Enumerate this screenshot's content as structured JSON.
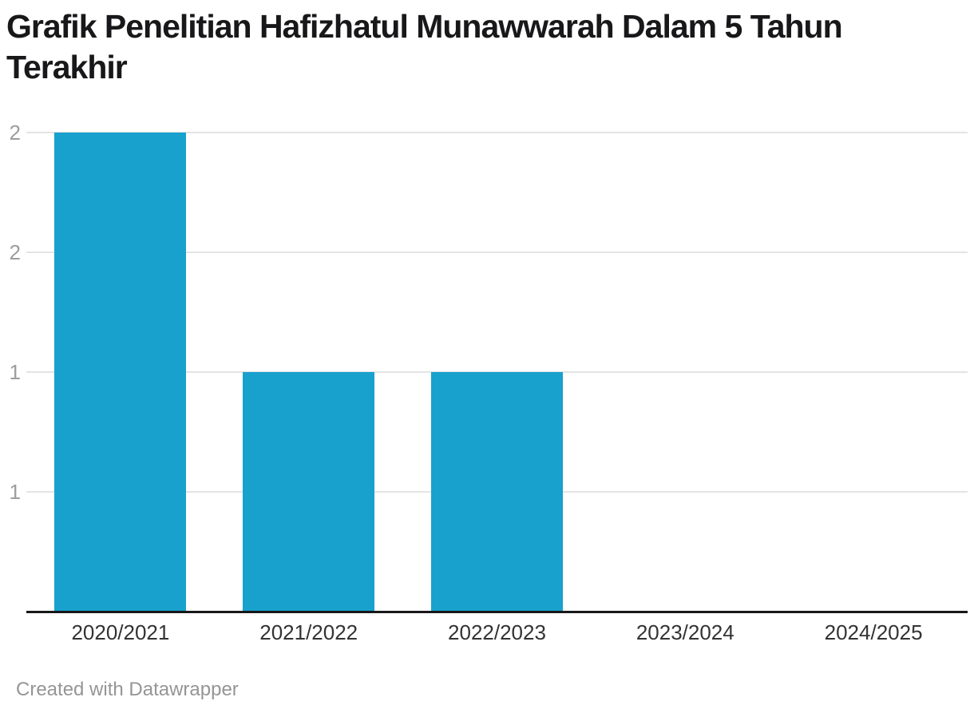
{
  "header": {
    "title": "Grafik Penelitian Hafizhatul Munawwarah Dalam 5 Tahun Terakhir"
  },
  "chart_data": {
    "type": "bar",
    "title": "Grafik Penelitian Hafizhatul Munawwarah Dalam 5 Tahun Terakhir",
    "categories": [
      "2020/2021",
      "2021/2022",
      "2022/2023",
      "2023/2024",
      "2024/2025"
    ],
    "values": [
      2,
      1,
      1,
      0,
      0
    ],
    "xlabel": "",
    "ylabel": "",
    "ylim": [
      0,
      2
    ],
    "yticks": [
      {
        "value": 0.5,
        "label": "1"
      },
      {
        "value": 1,
        "label": "1"
      },
      {
        "value": 1.5,
        "label": "2"
      },
      {
        "value": 2,
        "label": "2"
      }
    ],
    "grid": true,
    "legend": "none",
    "bar_color": "#18a1cd"
  },
  "colors": {
    "bar": "#18a1cd",
    "gridline": "#e4e4e4",
    "baseline": "#18181a",
    "y_tick_label": "#9d9d9d",
    "x_tick_label": "#333333",
    "title": "#18181a",
    "footer": "#959595"
  },
  "footer": {
    "attribution": "Created with Datawrapper"
  }
}
